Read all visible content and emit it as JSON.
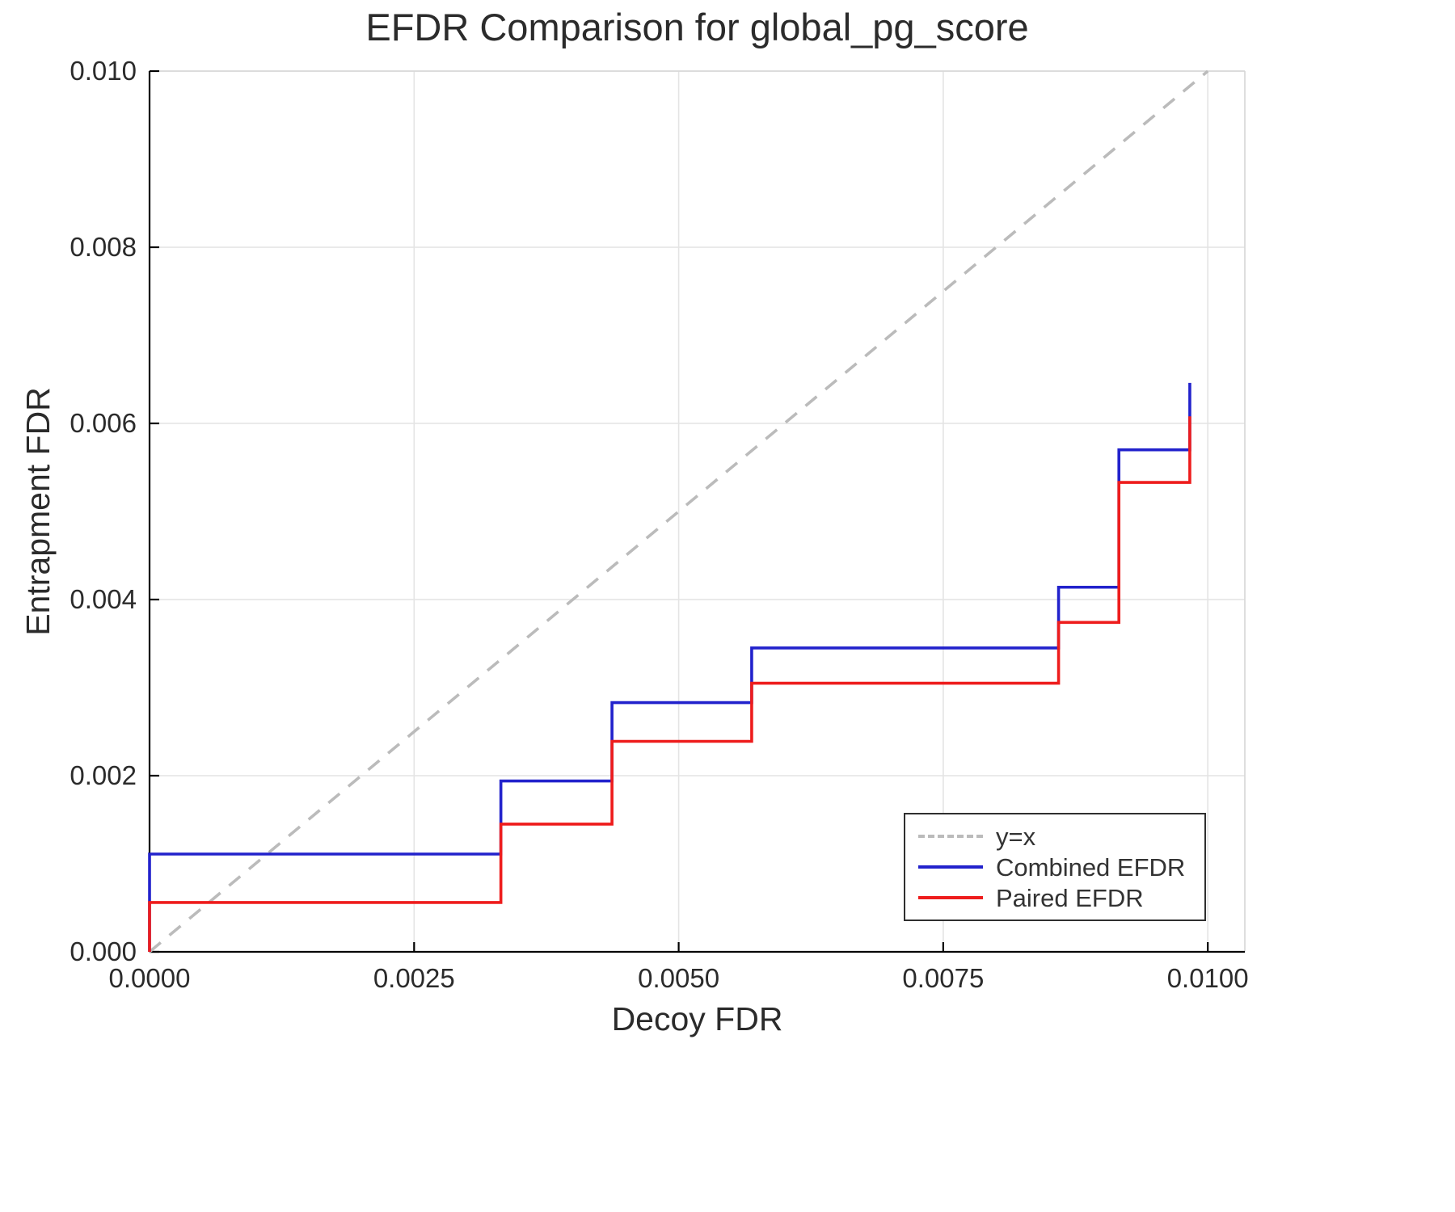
{
  "chart_data": {
    "type": "line",
    "title": "EFDR Comparison for global_pg_score",
    "xlabel": "Decoy FDR",
    "ylabel": "Entrapment FDR",
    "xlim": [
      0,
      0.01035
    ],
    "ylim": [
      0,
      0.01
    ],
    "grid": true,
    "legend_position": "bottom-right",
    "xticks": {
      "values": [
        0,
        0.0025,
        0.005,
        0.0075,
        0.01
      ],
      "labels": [
        "0.0000",
        "0.0025",
        "0.0050",
        "0.0075",
        "0.0100"
      ]
    },
    "yticks": {
      "values": [
        0,
        0.002,
        0.004,
        0.006,
        0.008,
        0.01
      ],
      "labels": [
        "0.000",
        "0.002",
        "0.004",
        "0.006",
        "0.008",
        "0.010"
      ]
    },
    "series": [
      {
        "name": "y=x",
        "style": "dashed",
        "color": "#bbbbbb",
        "points": [
          [
            0,
            0
          ],
          [
            0.01,
            0.01
          ]
        ]
      },
      {
        "name": "Combined EFDR",
        "style": "solid",
        "color": "#2222cc",
        "points": [
          [
            0,
            0
          ],
          [
            0,
            0.00111
          ],
          [
            0.00332,
            0.00111
          ],
          [
            0.00332,
            0.00194
          ],
          [
            0.00437,
            0.00194
          ],
          [
            0.00437,
            0.00283
          ],
          [
            0.00569,
            0.00283
          ],
          [
            0.00569,
            0.00345
          ],
          [
            0.00859,
            0.00345
          ],
          [
            0.00859,
            0.00414
          ],
          [
            0.00916,
            0.00414
          ],
          [
            0.00916,
            0.0057
          ],
          [
            0.00983,
            0.0057
          ],
          [
            0.00983,
            0.00646
          ]
        ]
      },
      {
        "name": "Paired EFDR",
        "style": "solid",
        "color": "#ee1c1c",
        "points": [
          [
            0,
            0
          ],
          [
            0,
            0.00056
          ],
          [
            0.00332,
            0.00056
          ],
          [
            0.00332,
            0.00145
          ],
          [
            0.00437,
            0.00145
          ],
          [
            0.00437,
            0.00239
          ],
          [
            0.00569,
            0.00239
          ],
          [
            0.00569,
            0.00305
          ],
          [
            0.00859,
            0.00305
          ],
          [
            0.00859,
            0.00374
          ],
          [
            0.00916,
            0.00374
          ],
          [
            0.00916,
            0.00533
          ],
          [
            0.00983,
            0.00533
          ],
          [
            0.00983,
            0.00608
          ]
        ]
      }
    ]
  }
}
